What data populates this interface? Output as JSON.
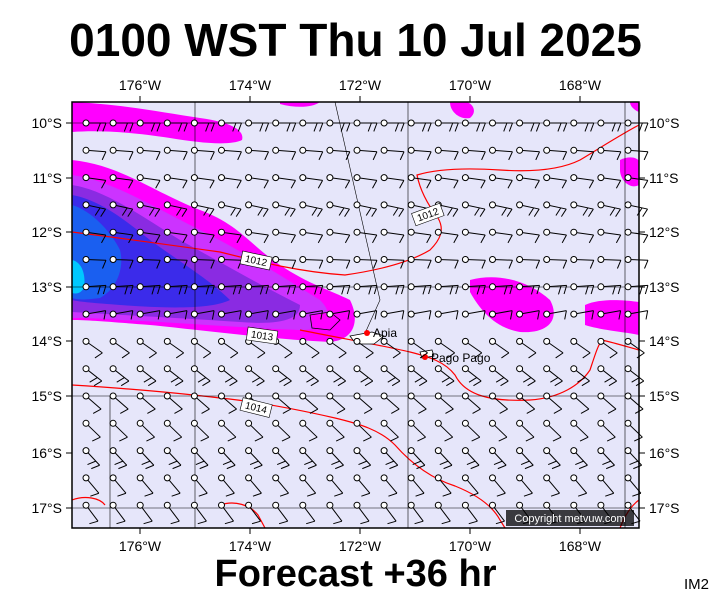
{
  "header": {
    "title": "0100 WST Thu 10 Jul 2025"
  },
  "footer": {
    "subtitle": "Forecast +36 hr",
    "image_tag": "IM2"
  },
  "map": {
    "lon_labels": [
      "176°W",
      "174°W",
      "172°W",
      "170°W",
      "168°W"
    ],
    "lat_labels": [
      "10°S",
      "11°S",
      "12°S",
      "13°S",
      "14°S",
      "15°S",
      "16°S",
      "17°S"
    ],
    "isobar_labels": [
      "1012",
      "1012",
      "1013",
      "1014"
    ],
    "places": [
      {
        "name": "Apia",
        "lon": -171.76,
        "lat": -13.83
      },
      {
        "name": "Pago Pago",
        "lon": -170.7,
        "lat": -14.28
      }
    ],
    "copyright": "Copyright metvuw.com",
    "colors": {
      "background": "#e6e6fa",
      "isobar": "#ff0000",
      "rain_light": "#ff00ff",
      "rain_medium": "#9b30ff",
      "rain_heavy": "#2020f0",
      "rain_core": "#00a0ff"
    }
  }
}
